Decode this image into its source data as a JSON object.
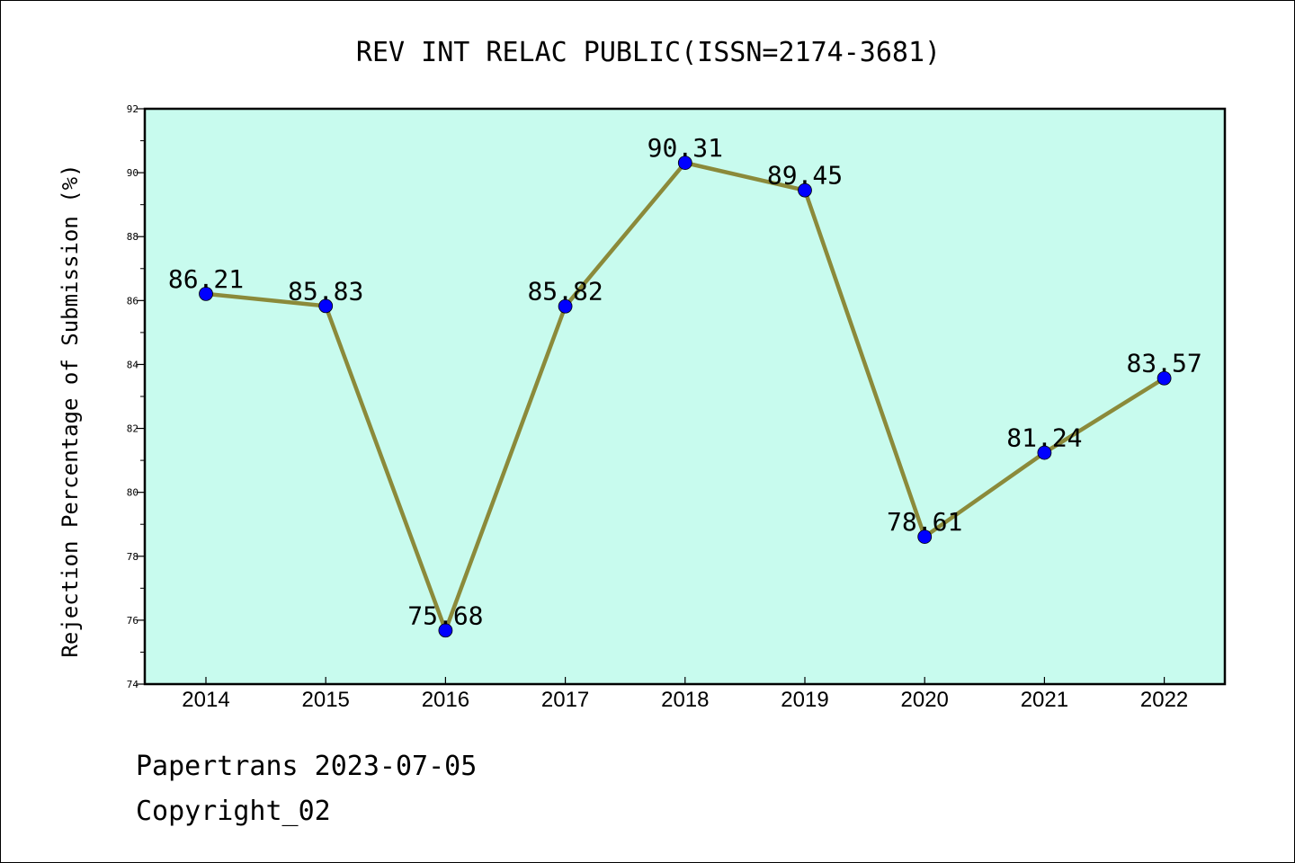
{
  "chart_data": {
    "type": "line",
    "title": "REV INT RELAC PUBLIC(ISSN=2174-3681)",
    "ylabel": "Rejection Percentage of Submission (%)",
    "xlabel": "",
    "categories": [
      "2014",
      "2015",
      "2016",
      "2017",
      "2018",
      "2019",
      "2020",
      "2021",
      "2022"
    ],
    "values": [
      86.21,
      85.83,
      75.68,
      85.82,
      90.31,
      89.45,
      78.61,
      81.24,
      83.57
    ],
    "data_labels": [
      "86.21",
      "85.83",
      "75.68",
      "85.82",
      "90.31",
      "89.45",
      "78.61",
      "81.24",
      "83.57"
    ],
    "ylim": [
      74,
      92
    ],
    "yticks": [
      "74",
      "76",
      "78",
      "80",
      "82",
      "84",
      "86",
      "88",
      "90",
      "92"
    ],
    "grid": false,
    "legend": "none",
    "colors": {
      "plot_background": "#c8fbee",
      "line": "#8b8a3a",
      "marker": "#0000ff"
    }
  },
  "footer": {
    "line1": "Papertrans 2023-07-05",
    "line2": "Copyright_02"
  }
}
